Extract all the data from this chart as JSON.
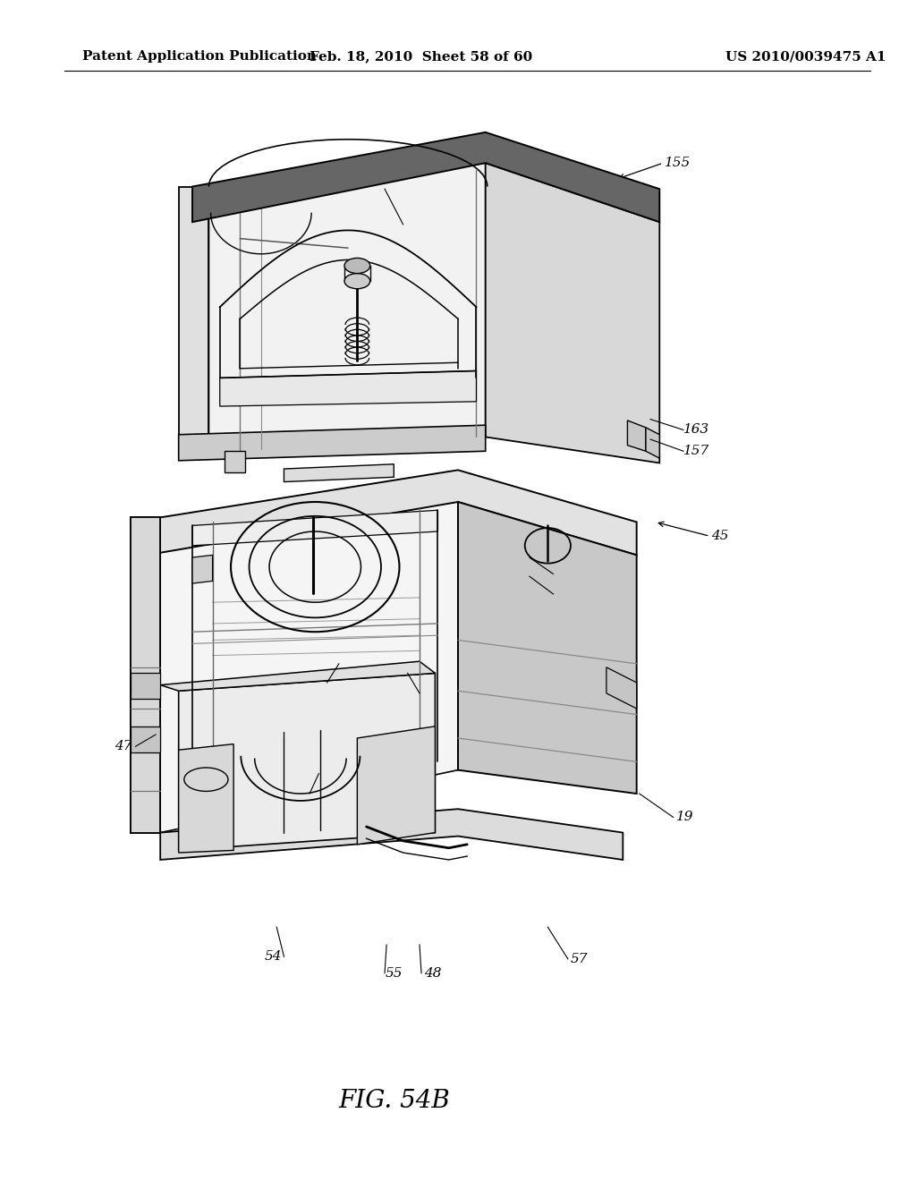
{
  "bg_color": "#ffffff",
  "header_left": "Patent Application Publication",
  "header_mid": "Feb. 18, 2010  Sheet 58 of 60",
  "header_right": "US 2010/0039475 A1",
  "fig_label": "FIG. 54B",
  "header_fontsize": 11,
  "label_fontsize": 11,
  "fig_label_fontsize": 20
}
